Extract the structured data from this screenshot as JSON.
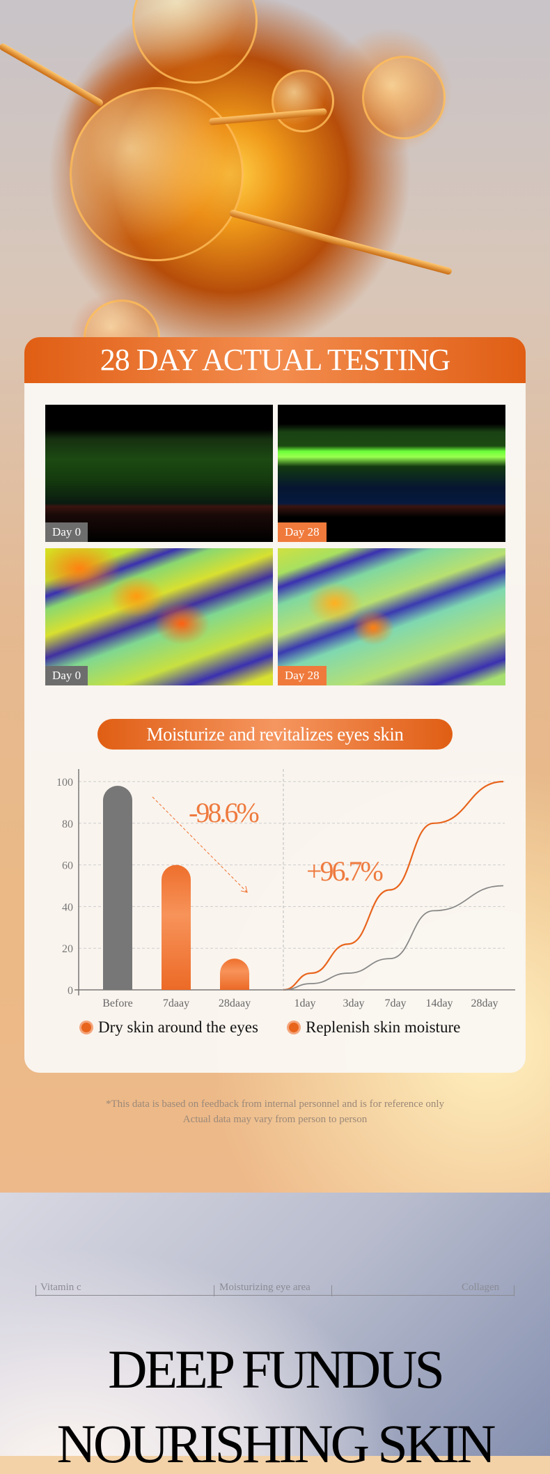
{
  "card": {
    "title": "28 DAY ACTUAL TESTING",
    "images": [
      {
        "label": "Day 0"
      },
      {
        "label": "Day 28"
      },
      {
        "label": "Day 0"
      },
      {
        "label": "Day 28"
      }
    ],
    "chart_title": "Moisturize and revitalizes eyes skin"
  },
  "chart_data": [
    {
      "type": "bar",
      "categories": [
        "Before",
        "7daay",
        "28daay"
      ],
      "values": [
        98,
        60,
        15
      ],
      "ylim": [
        0,
        100
      ],
      "yticks": [
        0,
        20,
        40,
        60,
        80,
        100
      ],
      "grid": true,
      "annotation": "-98.6%",
      "colors": [
        "#777777",
        "#f0783a",
        "#f0783a"
      ],
      "series_name": "Dry skin around the eyes"
    },
    {
      "type": "line",
      "categories": [
        "1day",
        "3day",
        "7day",
        "14day",
        "28day"
      ],
      "ylim": [
        0,
        100
      ],
      "grid": true,
      "annotation": "+96.7%",
      "series": [
        {
          "values": [
            8,
            22,
            48,
            80,
            100
          ],
          "color": "#e8641c"
        },
        {
          "values": [
            3,
            8,
            15,
            38,
            50
          ],
          "color": "#888888"
        }
      ],
      "series_name": "Replenish skin moisture"
    }
  ],
  "legend": [
    "Dry skin around the eyes",
    "Replenish skin moisture"
  ],
  "disclaimer": [
    "*This data is based on feedback from internal personnel and is for reference only",
    "Actual data may vary from person to person"
  ],
  "keywords": [
    "Vitamin c",
    "Moisturizing eye area",
    "Collagen"
  ],
  "headline": [
    "DEEP FUNDUS",
    "NOURISHING SKIN"
  ]
}
